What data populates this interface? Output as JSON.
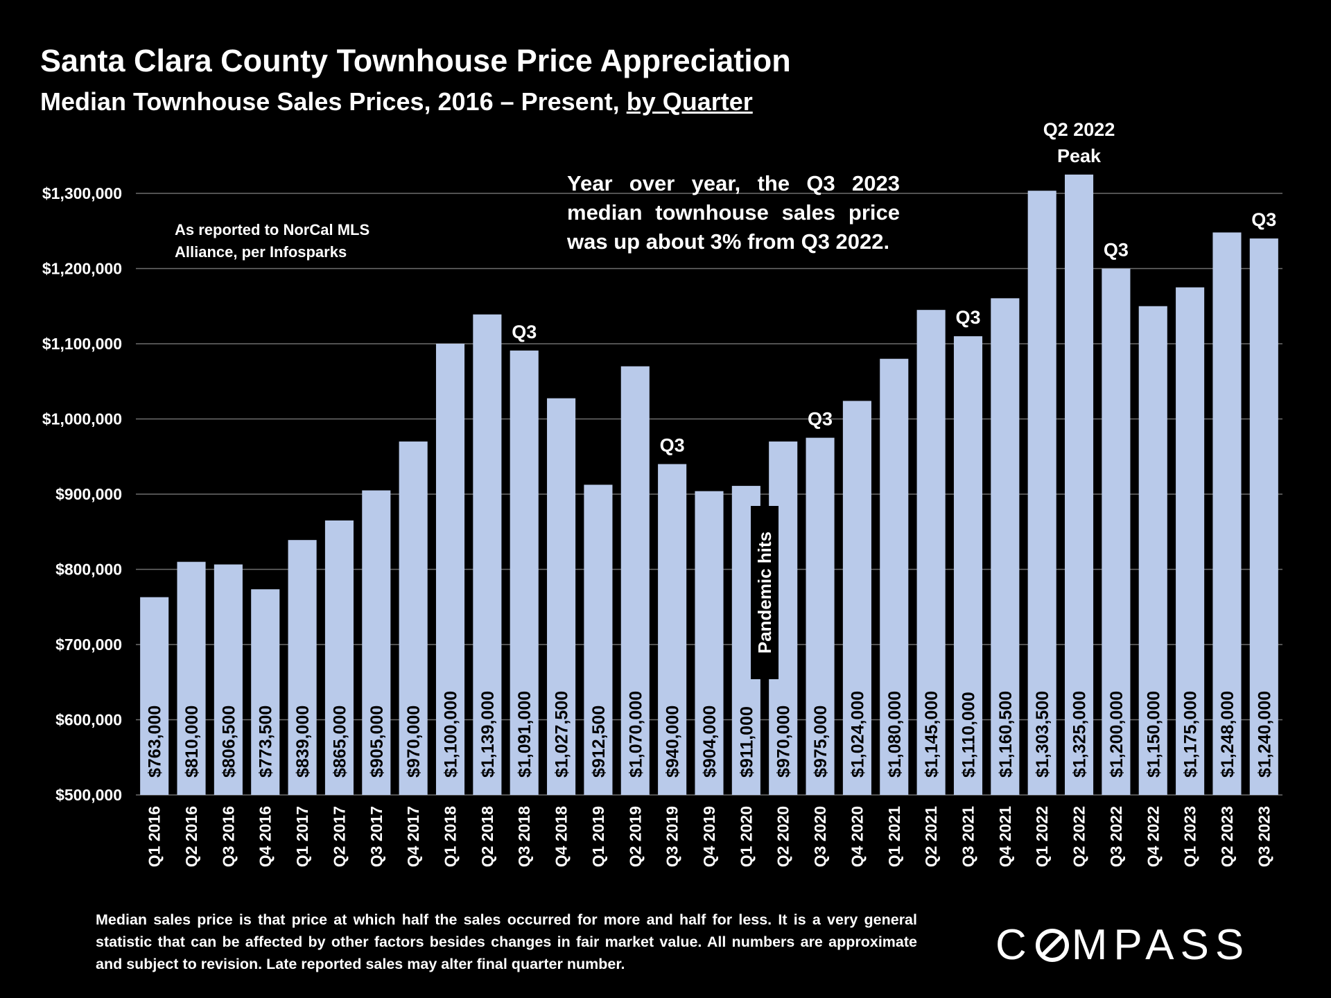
{
  "header": {
    "title": "Santa Clara County Townhouse Price Appreciation",
    "subtitle_main": "Median Townhouse Sales Prices, 2016 – Present,",
    "subtitle_link": "by Quarter"
  },
  "notes": {
    "source": "As reported to NorCal MLS Alliance, per Infosparks",
    "yoy": "Year over year, the Q3 2023 median townhouse sales price was up about 3% from Q3 2022.",
    "footnote": "Median sales price is that price at which half the sales occurred for more and half for less. It is a very general statistic that can be affected by other factors besides changes in fair market value. All numbers are approximate and subject to revision. Late reported sales may alter final quarter number."
  },
  "brand": {
    "logo_pre": "C",
    "logo_post": "MPASS"
  },
  "colors": {
    "bar": "#b9caea",
    "background": "#000000",
    "text": "#ffffff"
  },
  "chart_data": {
    "type": "bar",
    "title": "Santa Clara County Townhouse Price Appreciation",
    "ylabel": "",
    "xlabel": "",
    "ylim": [
      500000,
      1300000
    ],
    "yticks": [
      500000,
      600000,
      700000,
      800000,
      900000,
      1000000,
      1100000,
      1200000,
      1300000
    ],
    "ytick_labels": [
      "$500,000",
      "$600,000",
      "$700,000",
      "$800,000",
      "$900,000",
      "$1,000,000",
      "$1,100,000",
      "$1,200,000",
      "$1,300,000"
    ],
    "grid": true,
    "categories": [
      "Q1 2016",
      "Q2 2016",
      "Q3 2016",
      "Q4 2016",
      "Q1 2017",
      "Q2 2017",
      "Q3 2017",
      "Q4 2017",
      "Q1 2018",
      "Q2 2018",
      "Q3 2018",
      "Q4 2018",
      "Q1 2019",
      "Q2 2019",
      "Q3 2019",
      "Q4 2019",
      "Q1 2020",
      "Q2 2020",
      "Q3 2020",
      "Q4 2020",
      "Q1 2021",
      "Q2 2021",
      "Q3 2021",
      "Q4 2021",
      "Q1 2022",
      "Q2 2022",
      "Q3 2022",
      "Q4 2022",
      "Q1 2023",
      "Q2 2023",
      "Q3 2023"
    ],
    "values": [
      763000,
      810000,
      806500,
      773500,
      839000,
      865000,
      905000,
      970000,
      1100000,
      1139000,
      1091000,
      1027500,
      912500,
      1070000,
      940000,
      904000,
      911000,
      970000,
      975000,
      1024000,
      1080000,
      1145000,
      1110000,
      1160500,
      1303500,
      1325000,
      1200000,
      1150000,
      1175000,
      1248000,
      1240000
    ],
    "value_labels": [
      "$763,000",
      "$810,000",
      "$806,500",
      "$773,500",
      "$839,000",
      "$865,000",
      "$905,000",
      "$970,000",
      "$1,100,000",
      "$1,139,000",
      "$1,091,000",
      "$1,027,500",
      "$912,500",
      "$1,070,000",
      "$940,000",
      "$904,000",
      "$911,000",
      "$970,000",
      "$975,000",
      "$1,024,000",
      "$1,080,000",
      "$1,145,000",
      "$1,110,000",
      "$1,160,500",
      "$1,303,500",
      "$1,325,000",
      "$1,200,000",
      "$1,150,000",
      "$1,175,000",
      "$1,248,000",
      "$1,240,000"
    ],
    "annotations": [
      {
        "index": 10,
        "lines": [
          "Q3"
        ]
      },
      {
        "index": 14,
        "lines": [
          "Q3"
        ]
      },
      {
        "index": 18,
        "lines": [
          "Q3"
        ]
      },
      {
        "index": 22,
        "lines": [
          "Q3"
        ]
      },
      {
        "index": 25,
        "lines": [
          "Q2 2022",
          "Peak"
        ]
      },
      {
        "index": 26,
        "lines": [
          "Q3"
        ]
      },
      {
        "index": 30,
        "lines": [
          "Q3"
        ]
      }
    ],
    "event_label": {
      "between": [
        16,
        17
      ],
      "text": "Pandemic hits"
    }
  }
}
